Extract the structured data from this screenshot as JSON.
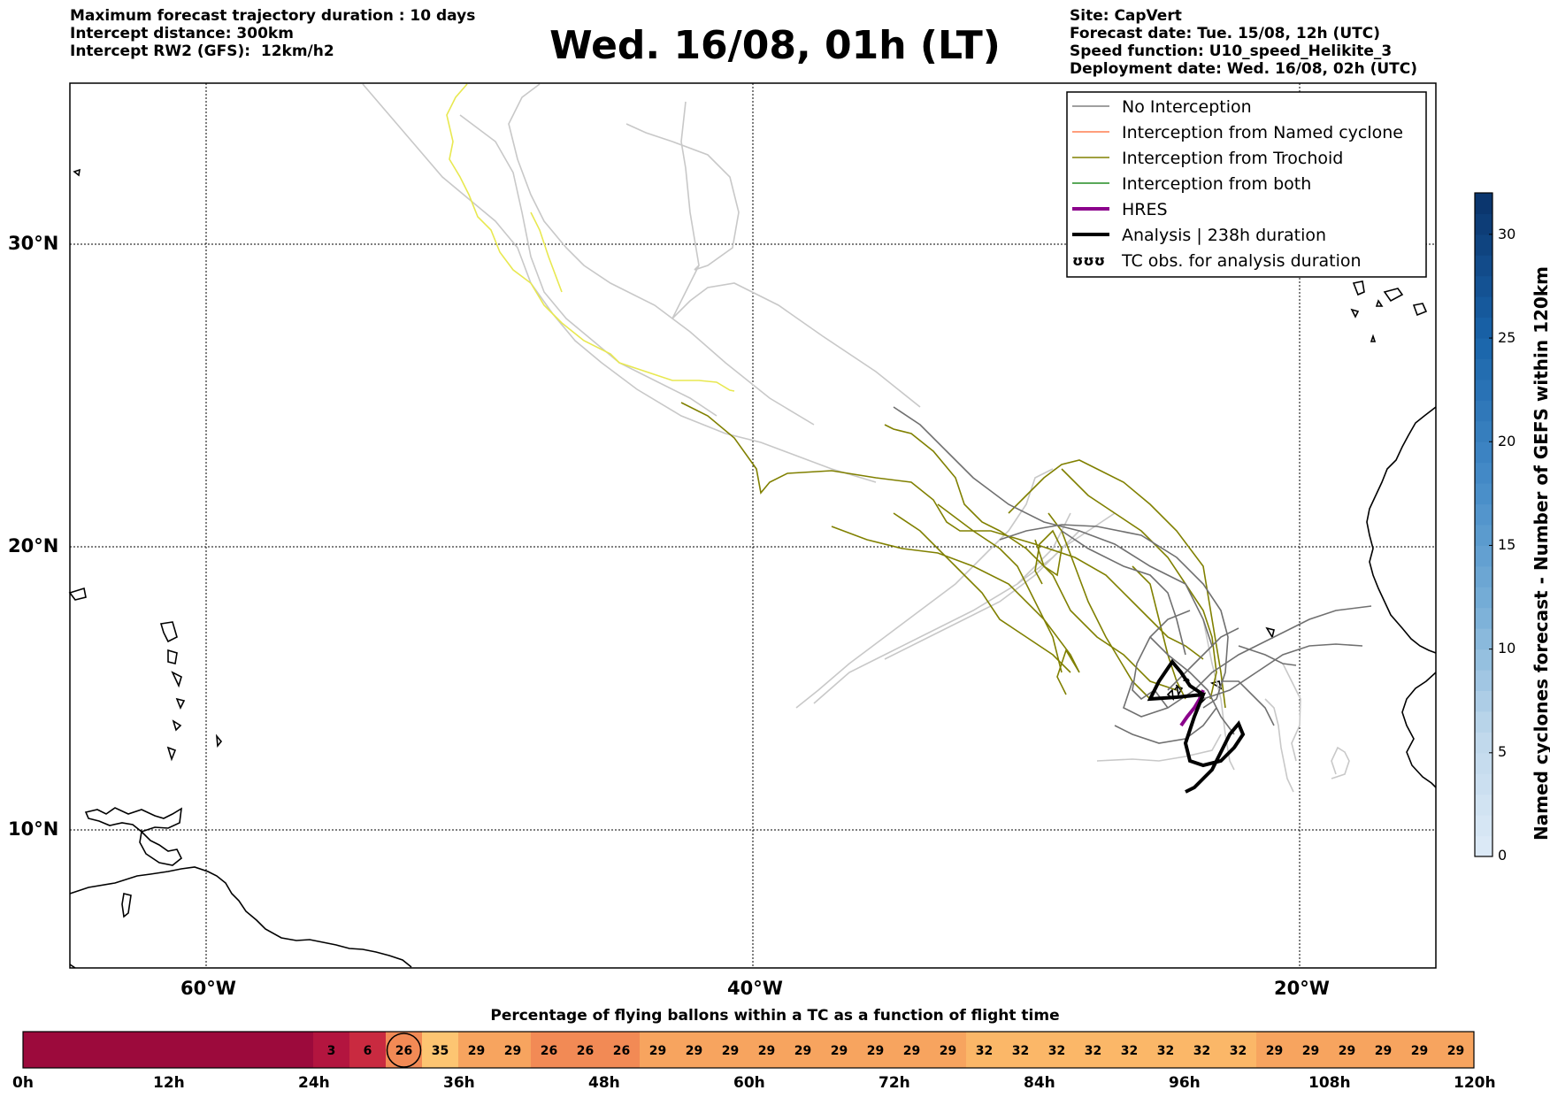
{
  "header_left": {
    "line1": "Maximum forecast trajectory duration : 10 days",
    "line2": "Intercept distance: 300km",
    "line3": "Intercept RW2 (GFS):  12km/h2"
  },
  "title": "Wed. 16/08, 01h (LT)",
  "header_right": {
    "site": "Site: CapVert",
    "forecast_date": "Forecast date: Tue. 15/08, 12h (UTC)",
    "speed_function": "Speed function: U10_speed_Helikite_3",
    "deployment_date": "Deployment date: Wed. 16/08, 02h (UTC)"
  },
  "map": {
    "lat_labels": [
      "30°N",
      "20°N",
      "10°N"
    ],
    "lon_labels": [
      "60°W",
      "40°W",
      "20°W"
    ],
    "lon_extent": [
      -65,
      -15
    ],
    "lat_extent": [
      5.5,
      35.5
    ],
    "grid_lon": [
      -60,
      -40,
      -20
    ],
    "grid_lat": [
      30,
      20,
      10
    ]
  },
  "legend": {
    "items": [
      {
        "label": "No Interception",
        "color": "#808080",
        "style": "thin"
      },
      {
        "label": "Interception from Named cyclone",
        "color": "#ff7f50",
        "style": "thin"
      },
      {
        "label": "Interception from Trochoid",
        "color": "#808000",
        "style": "thin"
      },
      {
        "label": "Interception from both",
        "color": "#228b22",
        "style": "thin"
      },
      {
        "label": "HRES",
        "color": "#8b008b",
        "style": "thick"
      },
      {
        "label": "Analysis | 238h duration",
        "color": "#000000",
        "style": "thick"
      },
      {
        "label": "TC obs. for analysis duration",
        "color": "#000000",
        "style": "symbol"
      }
    ]
  },
  "colorbar": {
    "label": "Named cyclones forecast - Number of GEFS within 120km",
    "ticks": [
      "0",
      "5",
      "10",
      "15",
      "20",
      "25",
      "30"
    ],
    "range": [
      0,
      32
    ]
  },
  "timeline": {
    "title": "Percentage of flying ballons within a TC as a function of flight time",
    "tick_labels": [
      "0h",
      "12h",
      "24h",
      "36h",
      "48h",
      "60h",
      "72h",
      "84h",
      "96h",
      "108h",
      "120h"
    ],
    "cells": [
      "",
      "",
      "",
      "",
      "",
      "",
      "",
      "",
      "3",
      "6",
      "26",
      "35",
      "29",
      "29",
      "26",
      "26",
      "26",
      "29",
      "29",
      "29",
      "29",
      "29",
      "29",
      "29",
      "29",
      "29",
      "32",
      "32",
      "32",
      "32",
      "32",
      "32",
      "32",
      "32",
      "29",
      "29",
      "29",
      "29",
      "29",
      "29"
    ],
    "highlighted_cell": 10
  }
}
